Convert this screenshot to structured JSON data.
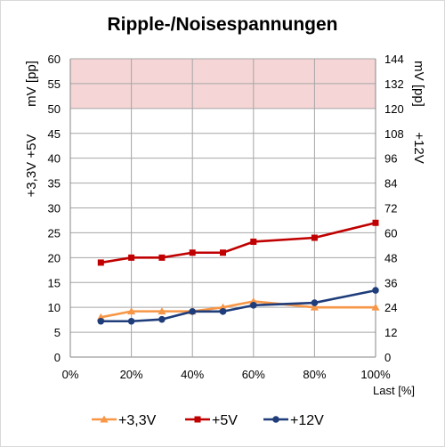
{
  "chart_data": {
    "type": "line",
    "title": "Ripple-/Noisespannungen",
    "x_label": "Last [%]",
    "y_left_label_top": "mV [pp]",
    "y_left_label_bottom": "+3,3V +5V",
    "y_right_label_top": "mV [pp]",
    "y_right_label_bottom": "+12V",
    "x_range": [
      0,
      100
    ],
    "x_ticks": [
      "0%",
      "20%",
      "40%",
      "60%",
      "80%",
      "100%"
    ],
    "y_left_range": [
      0,
      60
    ],
    "y_left_ticks": [
      "0",
      "5",
      "10",
      "15",
      "20",
      "25",
      "30",
      "35",
      "40",
      "45",
      "50",
      "55",
      "60"
    ],
    "y_right_range": [
      0,
      144
    ],
    "y_right_ticks": [
      "0",
      "12",
      "24",
      "36",
      "48",
      "60",
      "72",
      "84",
      "96",
      "108",
      "120",
      "132",
      "144"
    ],
    "limit_band": {
      "from": 50,
      "to": 60,
      "axis": "left",
      "color": "#f5d5d5"
    },
    "grid": true,
    "legend_position": "bottom",
    "series": [
      {
        "name": "+3,3V",
        "axis": "left",
        "color": "#f79646",
        "marker": "triangle",
        "points": [
          [
            10,
            8
          ],
          [
            20,
            9.2
          ],
          [
            30,
            9.2
          ],
          [
            40,
            9.2
          ],
          [
            50,
            10
          ],
          [
            60,
            11.2
          ],
          [
            80,
            10
          ],
          [
            100,
            10
          ]
        ]
      },
      {
        "name": "+5V",
        "axis": "left",
        "color": "#c00000",
        "marker": "square",
        "points": [
          [
            10,
            19
          ],
          [
            20,
            20
          ],
          [
            30,
            20
          ],
          [
            40,
            21
          ],
          [
            50,
            21
          ],
          [
            60,
            23.2
          ],
          [
            80,
            24
          ],
          [
            100,
            27
          ]
        ]
      },
      {
        "name": "+12V",
        "axis": "right",
        "color": "#1f3d7a",
        "marker": "circle",
        "points": [
          [
            10,
            17.3
          ],
          [
            20,
            17.3
          ],
          [
            30,
            18.2
          ],
          [
            40,
            22
          ],
          [
            50,
            22
          ],
          [
            60,
            25
          ],
          [
            80,
            26.2
          ],
          [
            100,
            32.2
          ]
        ]
      }
    ]
  }
}
